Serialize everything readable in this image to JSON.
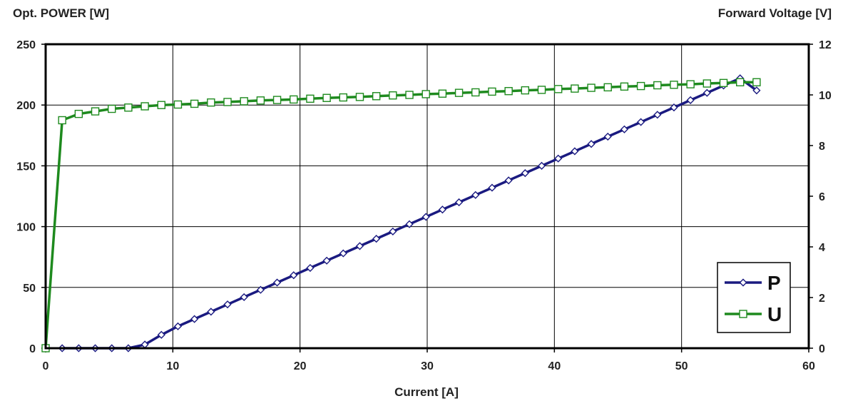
{
  "chart_data": {
    "type": "line",
    "title": "",
    "xlabel": "Current [A]",
    "ylabel_left": "Opt. POWER [W]",
    "ylabel_right": "Forward Voltage [V]",
    "xlim": [
      0,
      60
    ],
    "ylim_left": [
      0,
      250
    ],
    "ylim_right": [
      0,
      12
    ],
    "xticks": [
      "0",
      "10",
      "20",
      "30",
      "40",
      "50",
      "60"
    ],
    "yticks_left": [
      "0",
      "50",
      "100",
      "150",
      "200",
      "250"
    ],
    "yticks_right": [
      "0",
      "2",
      "4",
      "6",
      "8",
      "10",
      "12"
    ],
    "grid": true,
    "legend_position": "bottom-right",
    "series": [
      {
        "name": "P",
        "axis": "left",
        "color": "#1a1a80",
        "marker": "diamond",
        "x": [
          1.3,
          2.6,
          3.9,
          5.2,
          6.5,
          7.8,
          9.1,
          10.4,
          11.7,
          13.0,
          14.3,
          15.6,
          16.9,
          18.2,
          19.5,
          20.8,
          22.1,
          23.4,
          24.7,
          26.0,
          27.3,
          28.6,
          29.9,
          31.2,
          32.5,
          33.8,
          35.1,
          36.4,
          37.7,
          39.0,
          40.3,
          41.6,
          42.9,
          44.2,
          45.5,
          46.8,
          48.1,
          49.4,
          50.7,
          52.0,
          53.3,
          54.6,
          55.9
        ],
        "y": [
          0,
          0,
          0,
          0,
          0,
          3,
          11,
          18,
          24,
          30,
          36,
          42,
          48,
          54,
          60,
          66,
          72,
          78,
          84,
          90,
          96,
          102,
          108,
          114,
          120,
          126,
          132,
          138,
          144,
          150,
          156,
          162,
          168,
          174,
          180,
          186,
          192,
          198,
          204,
          210,
          216,
          222,
          212
        ]
      },
      {
        "name": "U",
        "axis": "right",
        "color": "#1e8a1e",
        "marker": "square",
        "x": [
          0,
          1.3,
          2.6,
          3.9,
          5.2,
          6.5,
          7.8,
          9.1,
          10.4,
          11.7,
          13.0,
          14.3,
          15.6,
          16.9,
          18.2,
          19.5,
          20.8,
          22.1,
          23.4,
          24.7,
          26.0,
          27.3,
          28.6,
          29.9,
          31.2,
          32.5,
          33.8,
          35.1,
          36.4,
          37.7,
          39.0,
          40.3,
          41.6,
          42.9,
          44.2,
          45.5,
          46.8,
          48.1,
          49.4,
          50.7,
          52.0,
          53.3,
          54.6,
          55.9
        ],
        "y": [
          0,
          9.0,
          9.25,
          9.35,
          9.45,
          9.5,
          9.55,
          9.6,
          9.62,
          9.65,
          9.7,
          9.72,
          9.75,
          9.78,
          9.8,
          9.82,
          9.85,
          9.88,
          9.9,
          9.92,
          9.95,
          9.98,
          10.0,
          10.03,
          10.05,
          10.08,
          10.1,
          10.13,
          10.15,
          10.18,
          10.2,
          10.23,
          10.25,
          10.28,
          10.3,
          10.33,
          10.35,
          10.38,
          10.4,
          10.42,
          10.45,
          10.47,
          10.5,
          10.5
        ]
      }
    ]
  }
}
